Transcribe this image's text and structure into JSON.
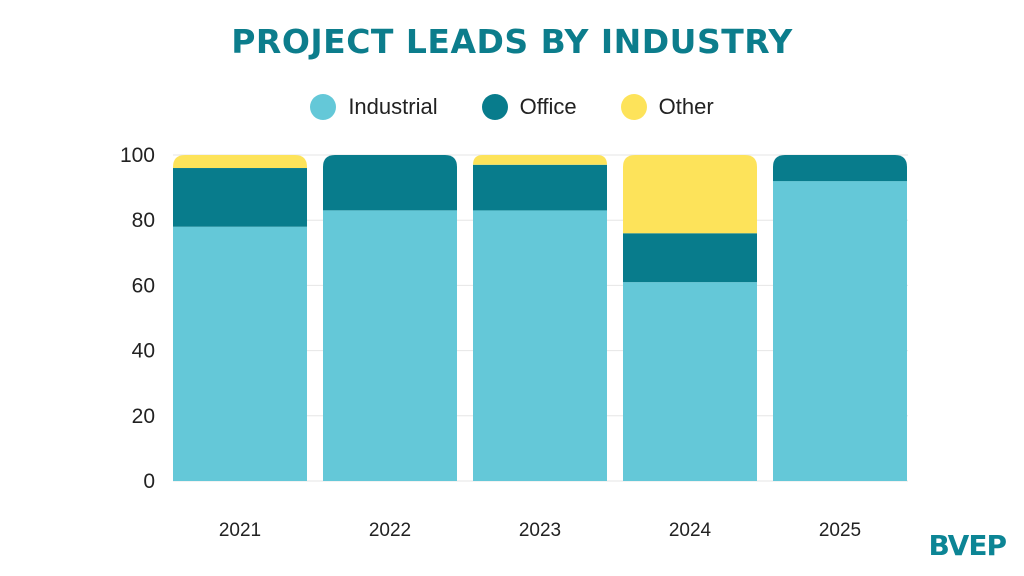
{
  "logo": {
    "text": "BVEP"
  },
  "chart_data": {
    "type": "bar",
    "stacked": true,
    "title": "PROJECT LEADS BY INDUSTRY",
    "xlabel": "",
    "ylabel": "",
    "categories": [
      "2021",
      "2022",
      "2023",
      "2024",
      "2025"
    ],
    "ylim": [
      0,
      100
    ],
    "yticks": [
      0,
      20,
      40,
      60,
      80,
      100
    ],
    "grid": true,
    "legend_position": "top",
    "series": [
      {
        "name": "Industrial",
        "color": "#64c8d8",
        "values": [
          78,
          83,
          83,
          61,
          92
        ]
      },
      {
        "name": "Office",
        "color": "#087c8c",
        "values": [
          18,
          17,
          14,
          15,
          8
        ]
      },
      {
        "name": "Other",
        "color": "#fde35a",
        "values": [
          4,
          0,
          3,
          24,
          0
        ]
      }
    ]
  }
}
